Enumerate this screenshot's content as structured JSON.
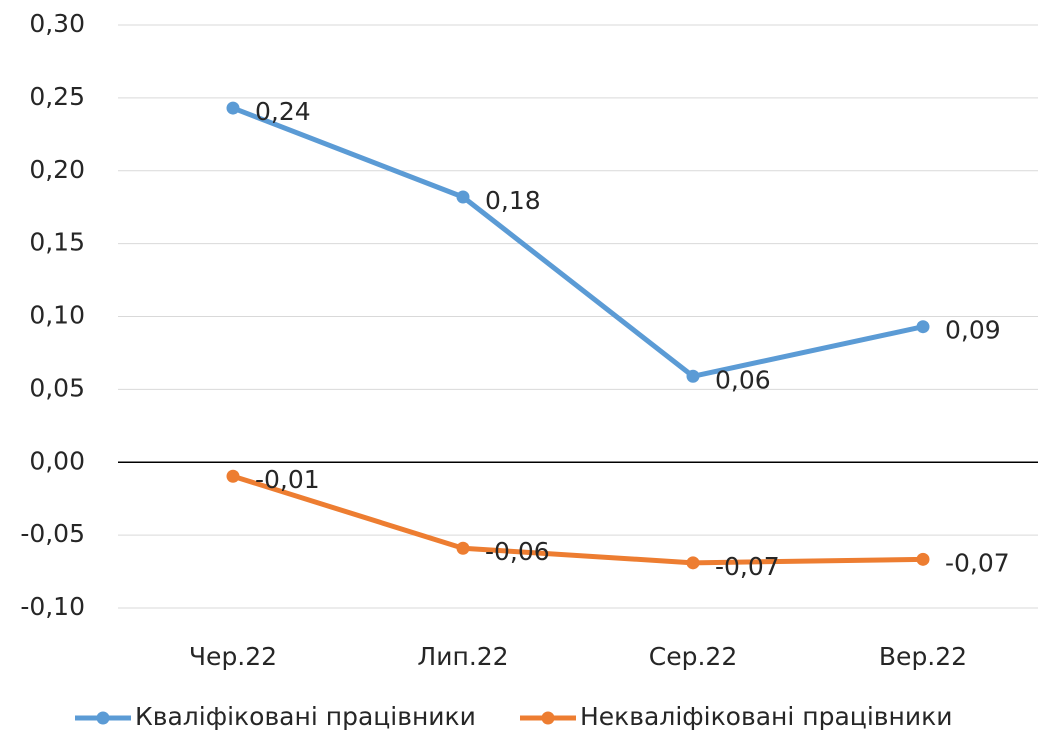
{
  "chart_data": {
    "type": "line",
    "categories": [
      "Чер.22",
      "Лип.22",
      "Сер.22",
      "Вер.22"
    ],
    "series": [
      {
        "name": "Кваліфіковані працівники",
        "color": "#5b9bd5",
        "values": [
          0.243,
          0.182,
          0.059,
          0.093
        ],
        "value_labels": [
          "0,24",
          "0,18",
          "0,06",
          "0,09"
        ]
      },
      {
        "name": "Некваліфіковані працівники",
        "color": "#ed7d31",
        "values": [
          -0.0096,
          -0.059,
          -0.069,
          -0.0666
        ],
        "value_labels": [
          "-0,01",
          "-0,06",
          "-0,07",
          "-0,07"
        ]
      }
    ],
    "ylim": [
      -0.1,
      0.3
    ],
    "yticks": [
      {
        "value": -0.1,
        "label": "-0,10"
      },
      {
        "value": -0.05,
        "label": "-0,05"
      },
      {
        "value": 0,
        "label": "0,00"
      },
      {
        "value": 0.05,
        "label": "0,05"
      },
      {
        "value": 0.1,
        "label": "0,10"
      },
      {
        "value": 0.15,
        "label": "0,15"
      },
      {
        "value": 0.2,
        "label": "0,20"
      },
      {
        "value": 0.25,
        "label": "0,25"
      },
      {
        "value": 0.3,
        "label": "0,30"
      }
    ],
    "grid": true,
    "legend": "bottom"
  }
}
